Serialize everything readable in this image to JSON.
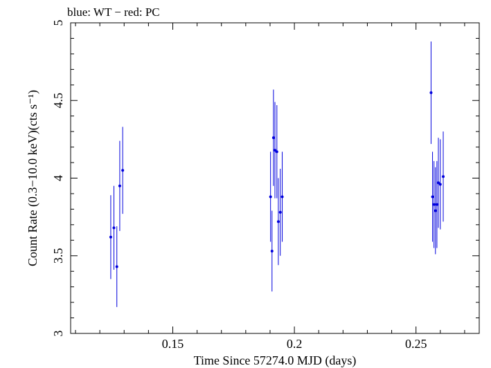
{
  "chart_data": {
    "type": "scatter",
    "title": "blue: WT − red: PC",
    "xlabel": "Time Since 57274.0 MJD (days)",
    "ylabel": "Count Rate (0.3−10.0 keV)(cts s⁻¹)",
    "xlim": [
      0.108,
      0.276
    ],
    "ylim": [
      3.0,
      5.0
    ],
    "xticks": [
      {
        "value": 0.15,
        "label": "0.15"
      },
      {
        "value": 0.2,
        "label": "0.2"
      },
      {
        "value": 0.25,
        "label": "0.25"
      }
    ],
    "yticks": [
      {
        "value": 3.0,
        "label": "3"
      },
      {
        "value": 3.5,
        "label": "3.5"
      },
      {
        "value": 4.0,
        "label": "4"
      },
      {
        "value": 4.5,
        "label": "4.5"
      },
      {
        "value": 5.0,
        "label": "5"
      }
    ],
    "series": [
      {
        "name": "WT",
        "color": "#0000dd",
        "points": [
          {
            "x": 0.1245,
            "y": 3.62,
            "err": 0.27
          },
          {
            "x": 0.1258,
            "y": 3.68,
            "err": 0.27
          },
          {
            "x": 0.127,
            "y": 3.43,
            "err": 0.26
          },
          {
            "x": 0.1282,
            "y": 3.95,
            "err": 0.29
          },
          {
            "x": 0.1294,
            "y": 4.05,
            "err": 0.28
          },
          {
            "x": 0.1902,
            "y": 3.88,
            "err": 0.29
          },
          {
            "x": 0.1908,
            "y": 3.53,
            "err": 0.26
          },
          {
            "x": 0.1914,
            "y": 4.26,
            "err": 0.31
          },
          {
            "x": 0.192,
            "y": 4.18,
            "err": 0.31
          },
          {
            "x": 0.1928,
            "y": 4.17,
            "err": 0.3
          },
          {
            "x": 0.1934,
            "y": 3.72,
            "err": 0.28
          },
          {
            "x": 0.1942,
            "y": 3.78,
            "err": 0.28
          },
          {
            "x": 0.195,
            "y": 3.88,
            "err": 0.29
          },
          {
            "x": 0.2562,
            "y": 4.55,
            "err": 0.33
          },
          {
            "x": 0.2568,
            "y": 3.88,
            "err": 0.29
          },
          {
            "x": 0.2574,
            "y": 3.83,
            "err": 0.28
          },
          {
            "x": 0.258,
            "y": 3.79,
            "err": 0.28
          },
          {
            "x": 0.2586,
            "y": 3.83,
            "err": 0.28
          },
          {
            "x": 0.2592,
            "y": 3.97,
            "err": 0.29
          },
          {
            "x": 0.26,
            "y": 3.96,
            "err": 0.29
          },
          {
            "x": 0.2612,
            "y": 4.01,
            "err": 0.29
          }
        ]
      }
    ]
  }
}
